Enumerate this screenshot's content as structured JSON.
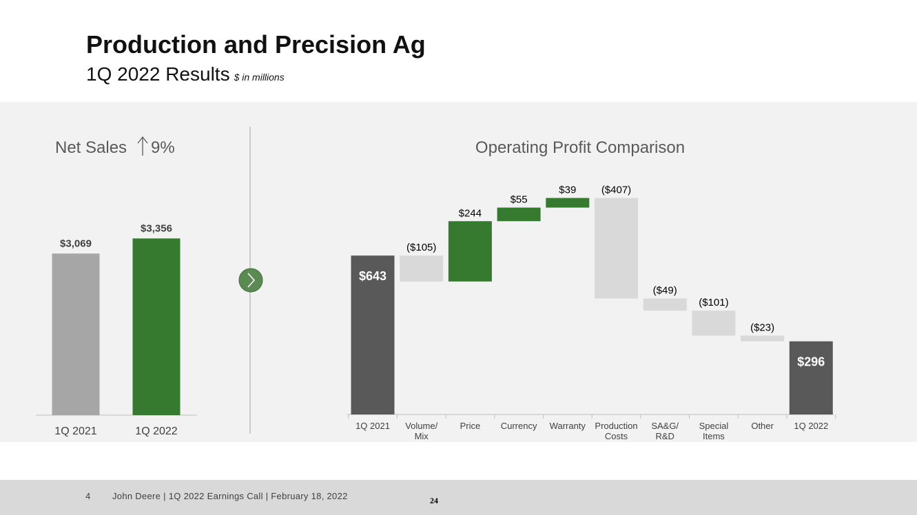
{
  "header": {
    "title": "Production and Precision Ag",
    "subtitle": "1Q 2022 Results",
    "unit_note": "$ in millions"
  },
  "footer": {
    "page_number": "4",
    "text": "John Deere | 1Q 2022 Earnings Call | February 18, 2022",
    "slide_number": "24"
  },
  "colors": {
    "green": "#357a2e",
    "gray_bar": "#a6a6a6",
    "dark_bar": "#595959",
    "light_bar": "#d9d9d9",
    "panel_bg": "#f2f2f2"
  },
  "chart_data": [
    {
      "type": "bar",
      "title": "Net Sales",
      "title_change": "9%",
      "title_icon": "up-arrow-icon",
      "categories": [
        "1Q 2021",
        "1Q 2022"
      ],
      "values": [
        3069,
        3356
      ],
      "value_labels": [
        "$3,069",
        "$3,356"
      ],
      "colors": [
        "#a6a6a6",
        "#357a2e"
      ],
      "ylim": [
        0,
        3700
      ]
    },
    {
      "type": "bar",
      "subtype": "waterfall",
      "title": "Operating Profit Comparison",
      "categories": [
        "1Q 2021",
        "Volume/\nMix",
        "Price",
        "Currency",
        "Warranty",
        "Production\nCosts",
        "SA&G/\nR&D",
        "Special\nItems",
        "Other",
        "1Q 2022"
      ],
      "values": [
        643,
        -105,
        244,
        55,
        39,
        -407,
        -49,
        -101,
        -23,
        296
      ],
      "kinds": [
        "total",
        "delta",
        "delta",
        "delta",
        "delta",
        "delta",
        "delta",
        "delta",
        "delta",
        "total"
      ],
      "value_labels": [
        "$643",
        "($105)",
        "$244",
        "$55",
        "$39",
        "($407)",
        "($49)",
        "($101)",
        "($23)",
        "$296"
      ],
      "ylim": [
        0,
        900
      ]
    }
  ]
}
